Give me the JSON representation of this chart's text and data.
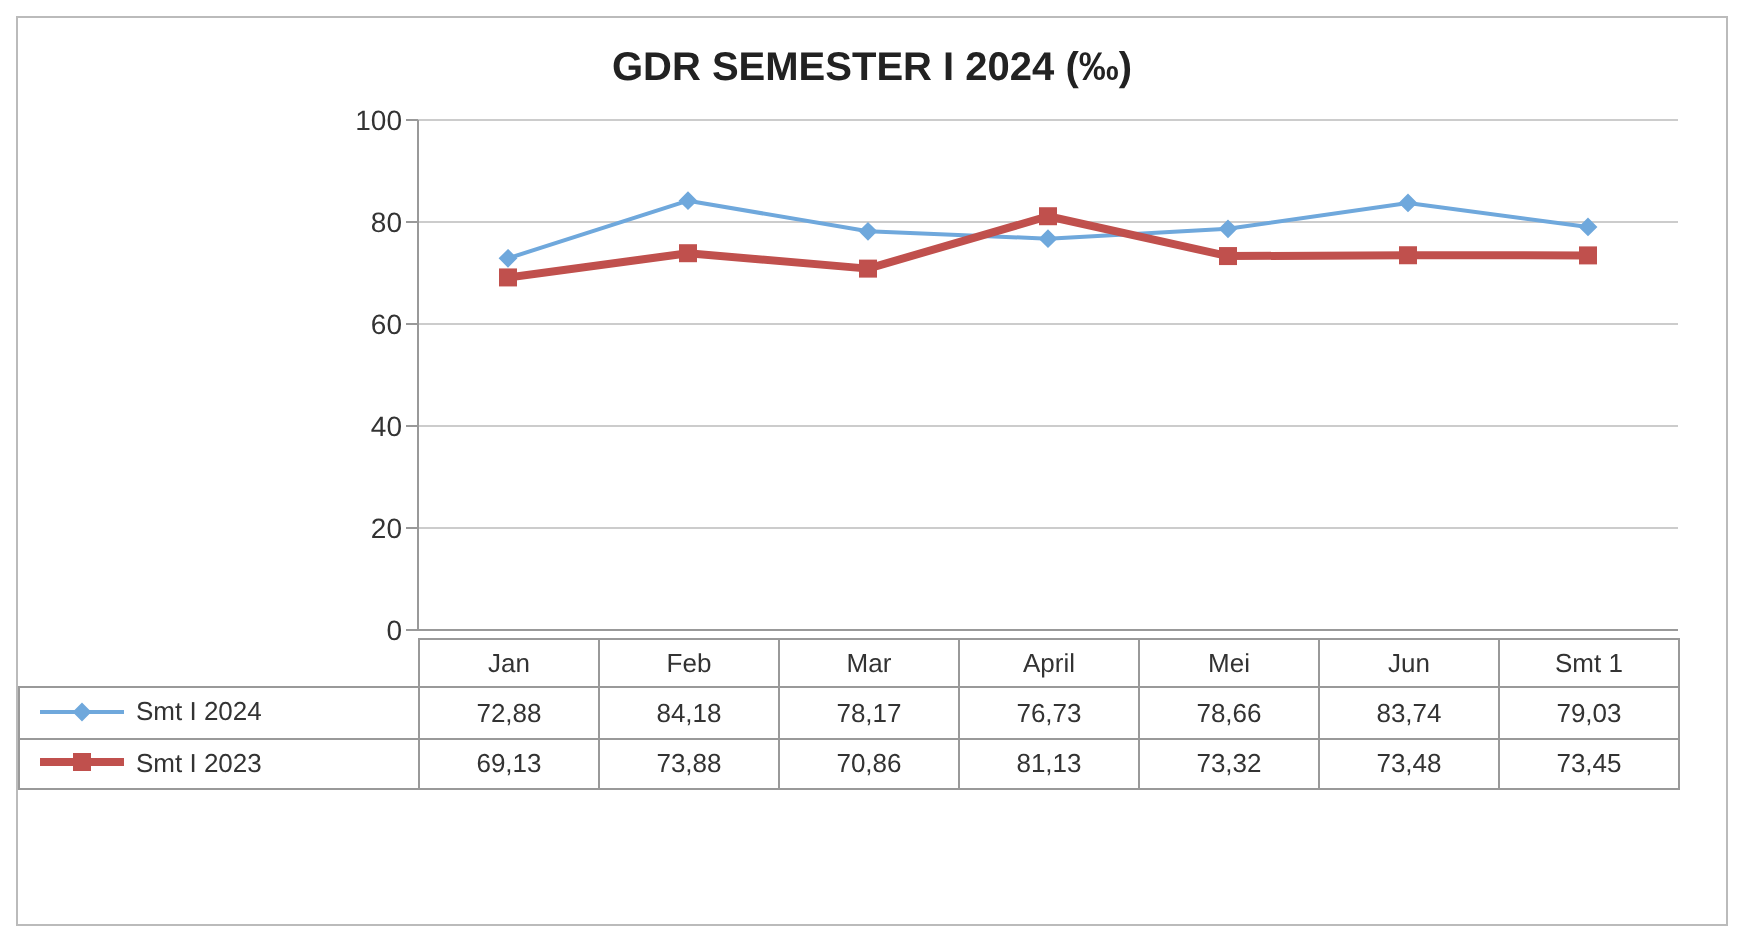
{
  "chart_data": {
    "type": "line",
    "title": "GDR SEMESTER I 2024 (‰)",
    "categories": [
      "Jan",
      "Feb",
      "Mar",
      "April",
      "Mei",
      "Jun",
      "Smt 1"
    ],
    "series": [
      {
        "name": "Smt I 2024",
        "color": "#6fa8dc",
        "marker": "diamond",
        "values": [
          72.88,
          84.18,
          78.17,
          76.73,
          78.66,
          83.74,
          79.03
        ],
        "value_labels": [
          "72,88",
          "84,18",
          "78,17",
          "76,73",
          "78,66",
          "83,74",
          "79,03"
        ]
      },
      {
        "name": "Smt I 2023",
        "color": "#c0504d",
        "marker": "square",
        "values": [
          69.13,
          73.88,
          70.86,
          81.13,
          73.32,
          73.48,
          73.45
        ],
        "value_labels": [
          "69,13",
          "73,88",
          "70,86",
          "81,13",
          "73,32",
          "73,48",
          "73,45"
        ]
      }
    ],
    "ylim": [
      0,
      100
    ],
    "yticks": [
      0,
      20,
      40,
      60,
      80,
      100
    ],
    "grid": "y",
    "legend": "bottom"
  }
}
